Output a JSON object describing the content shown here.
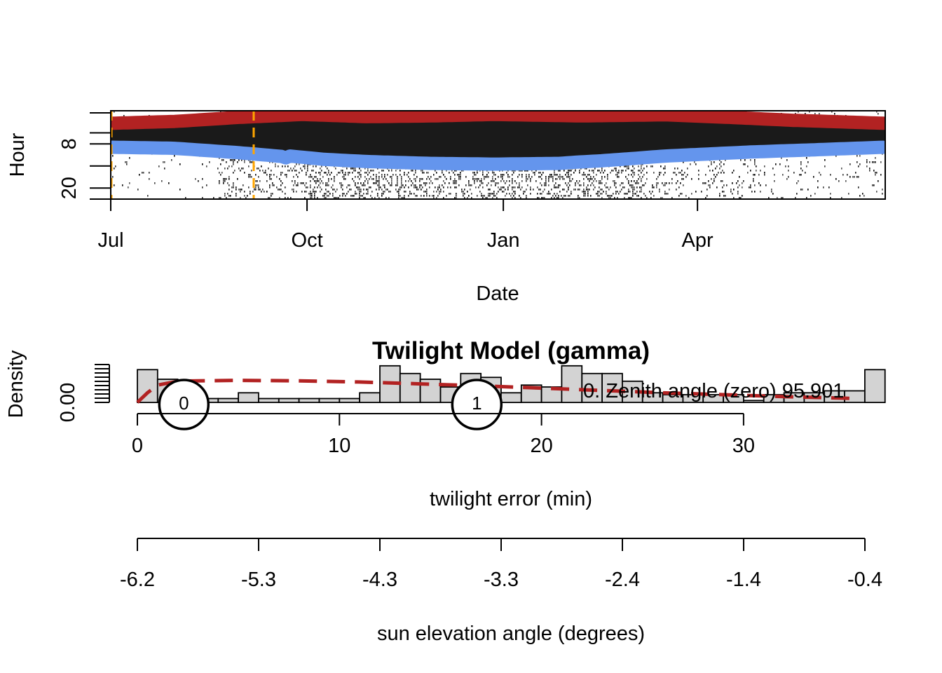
{
  "chart_data": [
    {
      "type": "heatmap",
      "title": "",
      "xlabel": "Date",
      "ylabel": "Hour",
      "x_tick_labels": [
        "Jul",
        "Oct",
        "Jan",
        "Apr"
      ],
      "x_tick_dates": [
        "07-01",
        "10-01",
        "01-01",
        "04-01"
      ],
      "xlim_days": [
        0,
        363
      ],
      "y_tick_labels": [
        "8",
        "20"
      ],
      "y_ticks_hours": [
        8,
        20
      ],
      "ylim_hours": [
        -1,
        23
      ],
      "y_reversed": true,
      "series": [
        {
          "name": "",
          "color": "#b22222",
          "x_days": [
            0,
            30,
            60,
            90,
            100,
            120,
            150,
            180,
            200,
            220,
            260,
            290,
            320,
            363
          ],
          "hour": [
            2.4,
            1.9,
            0.8,
            0.0,
            0.2,
            0.6,
            0.4,
            0.0,
            0.2,
            0.4,
            0.1,
            0.8,
            1.6,
            2.4
          ]
        },
        {
          "name": "",
          "color": "#6495ed",
          "x_days": [
            0,
            30,
            60,
            80,
            82,
            84,
            100,
            120,
            150,
            180,
            210,
            220,
            230,
            260,
            300,
            330,
            363
          ],
          "hour": [
            8.9,
            9.2,
            10.4,
            11.4,
            11.8,
            11.3,
            12.2,
            12.8,
            13.3,
            13.5,
            13.3,
            12.9,
            12.6,
            11.3,
            10.2,
            9.6,
            8.9
          ]
        }
      ],
      "vertical_lines": [
        {
          "x_days": 0,
          "color": "#ffa500",
          "style": "dashed"
        },
        {
          "x_days": 67,
          "color": "#ffa500",
          "style": "dashed"
        }
      ]
    },
    {
      "type": "bar",
      "title": "Twilight Model (gamma)",
      "xlabel": "twilight error (min)",
      "ylabel": "Density",
      "x_tick_labels": [
        "0",
        "10",
        "20",
        "30"
      ],
      "x_ticks": [
        0,
        10,
        20,
        30
      ],
      "xlim": [
        -0.05,
        37
      ],
      "y_tick_labels": [
        "0.00"
      ],
      "ylim": [
        0,
        0.1
      ],
      "bin_width": 1,
      "bin_start": 0,
      "values": [
        0.085,
        0.06,
        0.045,
        0.01,
        0.01,
        0.025,
        0.01,
        0.01,
        0.01,
        0.01,
        0.01,
        0.025,
        0.095,
        0.075,
        0.06,
        0.04,
        0.075,
        0.065,
        0.025,
        0.045,
        0.04,
        0.095,
        0.075,
        0.075,
        0.055,
        0.025,
        0.02,
        0.02,
        0.02,
        0.02,
        0.005,
        0.02,
        0.025,
        0.025,
        0.03,
        0.03,
        0.085
      ],
      "density_curve": {
        "color": "#b22222",
        "style": "dashed",
        "x": [
          0,
          0.5,
          1,
          2,
          3,
          5,
          8,
          11,
          14,
          17,
          20,
          23,
          26,
          29,
          32,
          35,
          35.5
        ],
        "y": [
          0,
          0.025,
          0.045,
          0.055,
          0.056,
          0.057,
          0.056,
          0.053,
          0.048,
          0.043,
          0.037,
          0.031,
          0.025,
          0.02,
          0.015,
          0.011,
          0.01
        ]
      },
      "markers": [
        {
          "label": "0",
          "x": 2.3
        },
        {
          "label": "1",
          "x": 16.8
        }
      ],
      "legend_text": "0. Zenith angle (zero) 95.901",
      "secondary_axis": {
        "xlabel": "sun elevation angle (degrees)",
        "tick_labels": [
          "-6.2",
          "-5.3",
          "-4.3",
          "-3.3",
          "-2.4",
          "-1.4",
          "-0.4"
        ]
      }
    }
  ]
}
